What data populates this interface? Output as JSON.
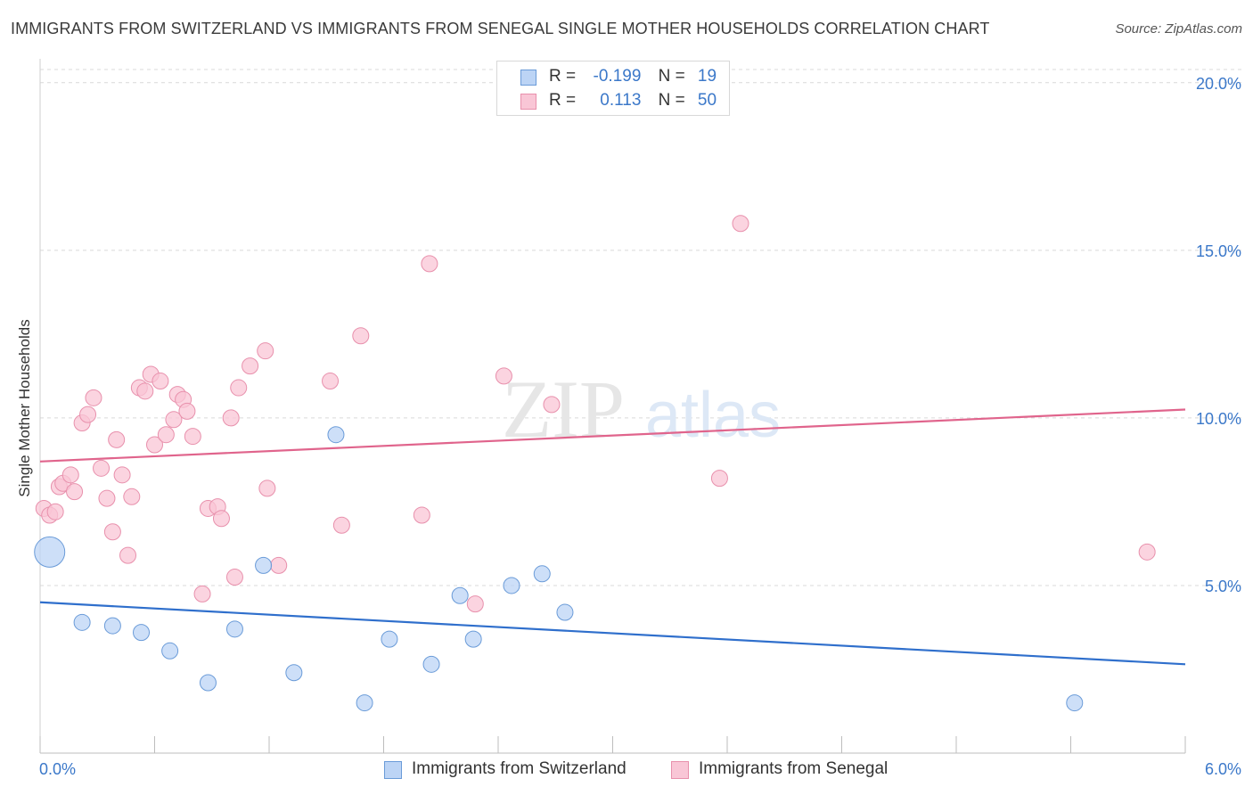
{
  "title": "IMMIGRANTS FROM SWITZERLAND VS IMMIGRANTS FROM SENEGAL SINGLE MOTHER HOUSEHOLDS CORRELATION CHART",
  "source": "Source: ZipAtlas.com",
  "watermark": {
    "zip": "ZIP",
    "atlas": "atlas"
  },
  "legend": {
    "rows": [
      {
        "r_label": "R =",
        "r_value": "-0.199",
        "n_label": "N =",
        "n_value": "19"
      },
      {
        "r_label": "R =",
        "r_value": "0.113",
        "n_label": "N =",
        "n_value": "50"
      }
    ]
  },
  "bottom_legend": [
    "Immigrants from Switzerland",
    "Immigrants from Senegal"
  ],
  "colors": {
    "blue_fill": "#bcd4f5",
    "blue_stroke": "#6a9bd8",
    "blue_line": "#2f6fcc",
    "pink_fill": "#f9c6d6",
    "pink_stroke": "#e890ac",
    "pink_line": "#e0648c",
    "tick_text": "#3b78c9",
    "grid": "#d9d9d9"
  },
  "chart_data": {
    "type": "scatter",
    "title": "IMMIGRANTS FROM SWITZERLAND VS IMMIGRANTS FROM SENEGAL SINGLE MOTHER HOUSEHOLDS CORRELATION CHART",
    "xlabel": "",
    "ylabel": "Single Mother Households",
    "xlim": [
      0,
      6
    ],
    "ylim": [
      0,
      20.5
    ],
    "x_tick_labels": [
      "0.0%",
      "6.0%"
    ],
    "y_ticks": [
      5,
      10,
      15,
      20
    ],
    "y_tick_labels": [
      "5.0%",
      "10.0%",
      "15.0%",
      "20.0%"
    ],
    "grid": true,
    "series": [
      {
        "name": "Immigrants from Switzerland",
        "points": [
          [
            0.05,
            6.0,
            "large"
          ],
          [
            0.22,
            3.9
          ],
          [
            0.38,
            3.8
          ],
          [
            0.53,
            3.6
          ],
          [
            0.68,
            3.05
          ],
          [
            0.88,
            2.1
          ],
          [
            1.02,
            3.7
          ],
          [
            1.17,
            5.6
          ],
          [
            1.33,
            2.4
          ],
          [
            1.55,
            9.5
          ],
          [
            1.7,
            1.5
          ],
          [
            1.83,
            3.4
          ],
          [
            2.05,
            2.65
          ],
          [
            2.2,
            4.7
          ],
          [
            2.27,
            3.4
          ],
          [
            2.47,
            5.0
          ],
          [
            2.63,
            5.35
          ],
          [
            2.75,
            4.2
          ],
          [
            5.42,
            1.5
          ]
        ],
        "trend": {
          "x": [
            0,
            6
          ],
          "y": [
            4.5,
            2.65
          ]
        }
      },
      {
        "name": "Immigrants from Senegal",
        "points": [
          [
            0.02,
            7.3
          ],
          [
            0.05,
            7.1
          ],
          [
            0.08,
            7.2
          ],
          [
            0.1,
            7.95
          ],
          [
            0.12,
            8.05
          ],
          [
            0.16,
            8.3
          ],
          [
            0.18,
            7.8
          ],
          [
            0.22,
            9.85
          ],
          [
            0.25,
            10.1
          ],
          [
            0.28,
            10.6
          ],
          [
            0.32,
            8.5
          ],
          [
            0.35,
            7.6
          ],
          [
            0.38,
            6.6
          ],
          [
            0.4,
            9.35
          ],
          [
            0.43,
            8.3
          ],
          [
            0.46,
            5.9
          ],
          [
            0.48,
            7.65
          ],
          [
            0.52,
            10.9
          ],
          [
            0.55,
            10.8
          ],
          [
            0.58,
            11.3
          ],
          [
            0.6,
            9.2
          ],
          [
            0.63,
            11.1
          ],
          [
            0.66,
            9.5
          ],
          [
            0.7,
            9.95
          ],
          [
            0.72,
            10.7
          ],
          [
            0.75,
            10.55
          ],
          [
            0.77,
            10.2
          ],
          [
            0.8,
            9.45
          ],
          [
            0.85,
            4.75
          ],
          [
            0.88,
            7.3
          ],
          [
            0.93,
            7.35
          ],
          [
            0.95,
            7.0
          ],
          [
            1.0,
            10.0
          ],
          [
            1.02,
            5.25
          ],
          [
            1.04,
            10.9
          ],
          [
            1.1,
            11.55
          ],
          [
            1.18,
            12.0
          ],
          [
            1.19,
            7.9
          ],
          [
            1.25,
            5.6
          ],
          [
            1.52,
            11.1
          ],
          [
            1.58,
            6.8
          ],
          [
            1.68,
            12.45
          ],
          [
            2.0,
            7.1
          ],
          [
            2.04,
            14.6
          ],
          [
            2.28,
            4.45
          ],
          [
            2.43,
            11.25
          ],
          [
            2.68,
            10.4
          ],
          [
            3.56,
            8.2
          ],
          [
            3.67,
            15.8
          ],
          [
            5.8,
            6.0
          ]
        ],
        "trend": {
          "x": [
            0,
            6
          ],
          "y": [
            8.7,
            10.25
          ]
        }
      }
    ]
  }
}
